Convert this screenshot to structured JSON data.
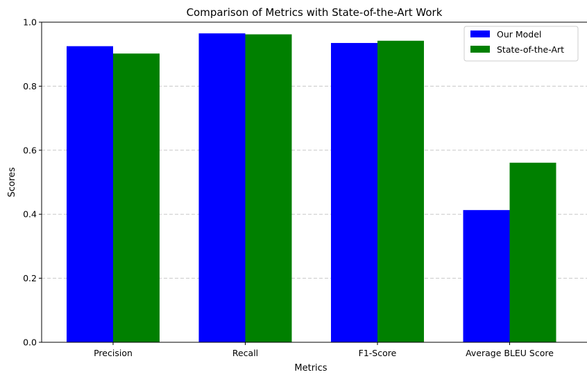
{
  "chart_data": {
    "type": "bar",
    "title": "Comparison of Metrics with State-of-the-Art Work",
    "xlabel": "Metrics",
    "ylabel": "Scores",
    "categories": [
      "Precision",
      "Recall",
      "F1-Score",
      "Average BLEU Score"
    ],
    "series": [
      {
        "name": "Our Model",
        "color": "#0000ff",
        "values": [
          0.925,
          0.965,
          0.935,
          0.413
        ]
      },
      {
        "name": "State-of-the-Art",
        "color": "#008000",
        "values": [
          0.902,
          0.962,
          0.942,
          0.561
        ]
      }
    ],
    "ylim": [
      0,
      1.0
    ],
    "yticks": [
      "0.0",
      "0.2",
      "0.4",
      "0.6",
      "0.8",
      "1.0"
    ],
    "grid": "y-dashed",
    "legend_position": "top-right"
  }
}
